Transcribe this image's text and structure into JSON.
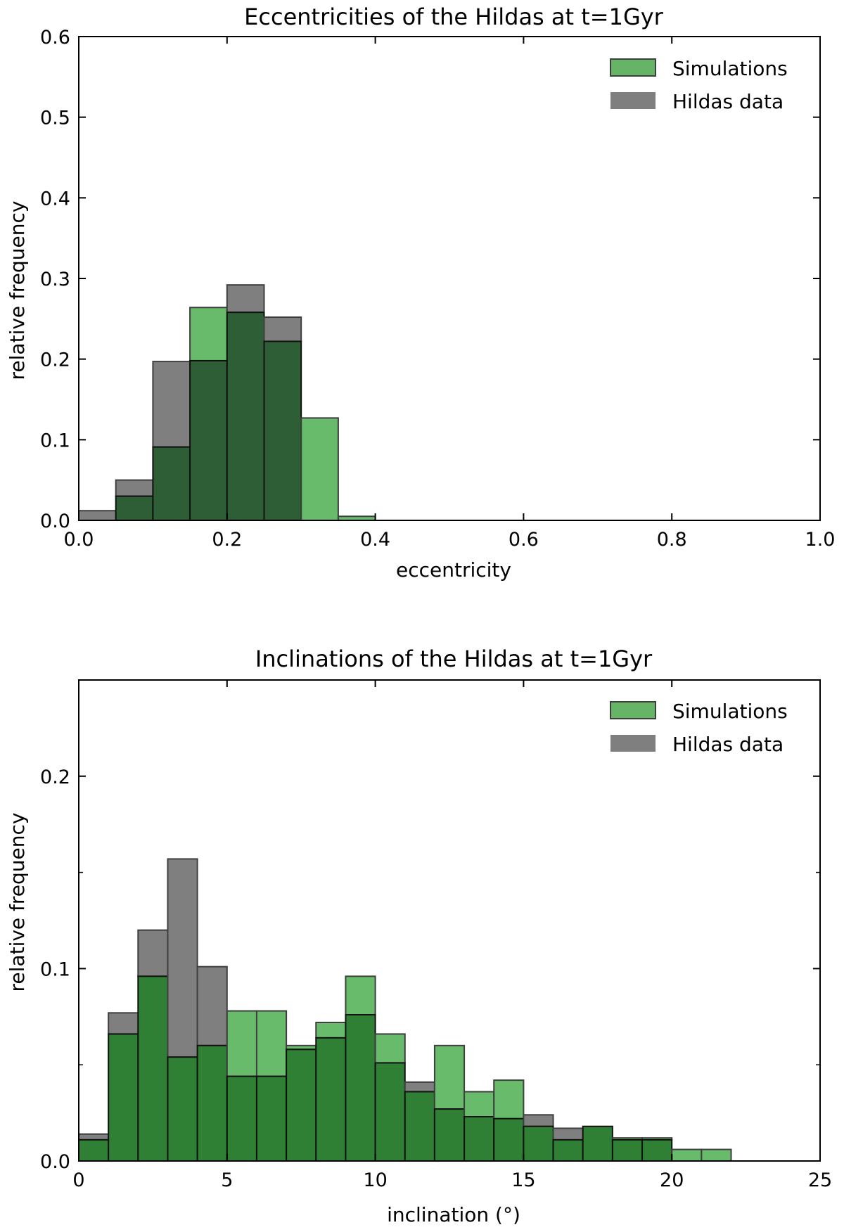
{
  "chart_data": [
    {
      "type": "bar",
      "title": "Eccentricities of the Hildas at t=1Gyr",
      "xlabel": "eccentricity",
      "ylabel": "relative frequency",
      "xlim": [
        0.0,
        1.0
      ],
      "ylim": [
        0.0,
        0.6
      ],
      "xticks": [
        "0.0",
        "0.2",
        "0.4",
        "0.6",
        "0.8",
        "1.0"
      ],
      "xtick_values": [
        0.0,
        0.2,
        0.4,
        0.6,
        0.8,
        1.0
      ],
      "yticks": [
        "0.0",
        "0.1",
        "0.2",
        "0.3",
        "0.4",
        "0.5",
        "0.6"
      ],
      "ytick_values": [
        0.0,
        0.1,
        0.2,
        0.3,
        0.4,
        0.5,
        0.6
      ],
      "bin_edges": [
        0.0,
        0.05,
        0.1,
        0.15,
        0.2,
        0.25,
        0.3,
        0.35,
        0.4
      ],
      "legend_position": "top-right",
      "series": [
        {
          "name": "Hildas data",
          "color": "#7f7f7f",
          "values": [
            0.012,
            0.05,
            0.197,
            0.198,
            0.292,
            0.252,
            0.0,
            0.0
          ]
        },
        {
          "name": "Simulations",
          "color": "#4caf50",
          "values": [
            0.0,
            0.03,
            0.091,
            0.264,
            0.258,
            0.222,
            0.127,
            0.005
          ]
        }
      ],
      "overlap_color": "#2e5e36"
    },
    {
      "type": "bar",
      "title": "Inclinations of the Hildas at t=1Gyr",
      "xlabel": "inclination (°)",
      "ylabel": "relative frequency",
      "xlim": [
        0,
        25
      ],
      "ylim": [
        0.0,
        0.25
      ],
      "xticks": [
        "0",
        "5",
        "10",
        "15",
        "20",
        "25"
      ],
      "xtick_values": [
        0,
        5,
        10,
        15,
        20,
        25
      ],
      "yticks": [
        "0.0",
        "0.1",
        "0.2"
      ],
      "ytick_values": [
        0.0,
        0.1,
        0.2
      ],
      "bin_edges": [
        0,
        1,
        2,
        3,
        4,
        5,
        6,
        7,
        8,
        9,
        10,
        11,
        12,
        13,
        14,
        15,
        16,
        17,
        18,
        19,
        20,
        21,
        22
      ],
      "legend_position": "top-right",
      "series": [
        {
          "name": "Hildas data",
          "color": "#7f7f7f",
          "values": [
            0.014,
            0.077,
            0.12,
            0.157,
            0.101,
            0.044,
            0.044,
            0.058,
            0.064,
            0.076,
            0.051,
            0.041,
            0.027,
            0.023,
            0.022,
            0.024,
            0.017,
            0.018,
            0.011,
            0.011,
            0.0,
            0.0
          ]
        },
        {
          "name": "Simulations",
          "color": "#4caf50",
          "values": [
            0.011,
            0.066,
            0.096,
            0.054,
            0.06,
            0.078,
            0.078,
            0.06,
            0.072,
            0.096,
            0.066,
            0.036,
            0.06,
            0.036,
            0.042,
            0.018,
            0.011,
            0.018,
            0.012,
            0.012,
            0.006,
            0.006
          ]
        }
      ],
      "overlap_color": "#2f7f34"
    }
  ]
}
